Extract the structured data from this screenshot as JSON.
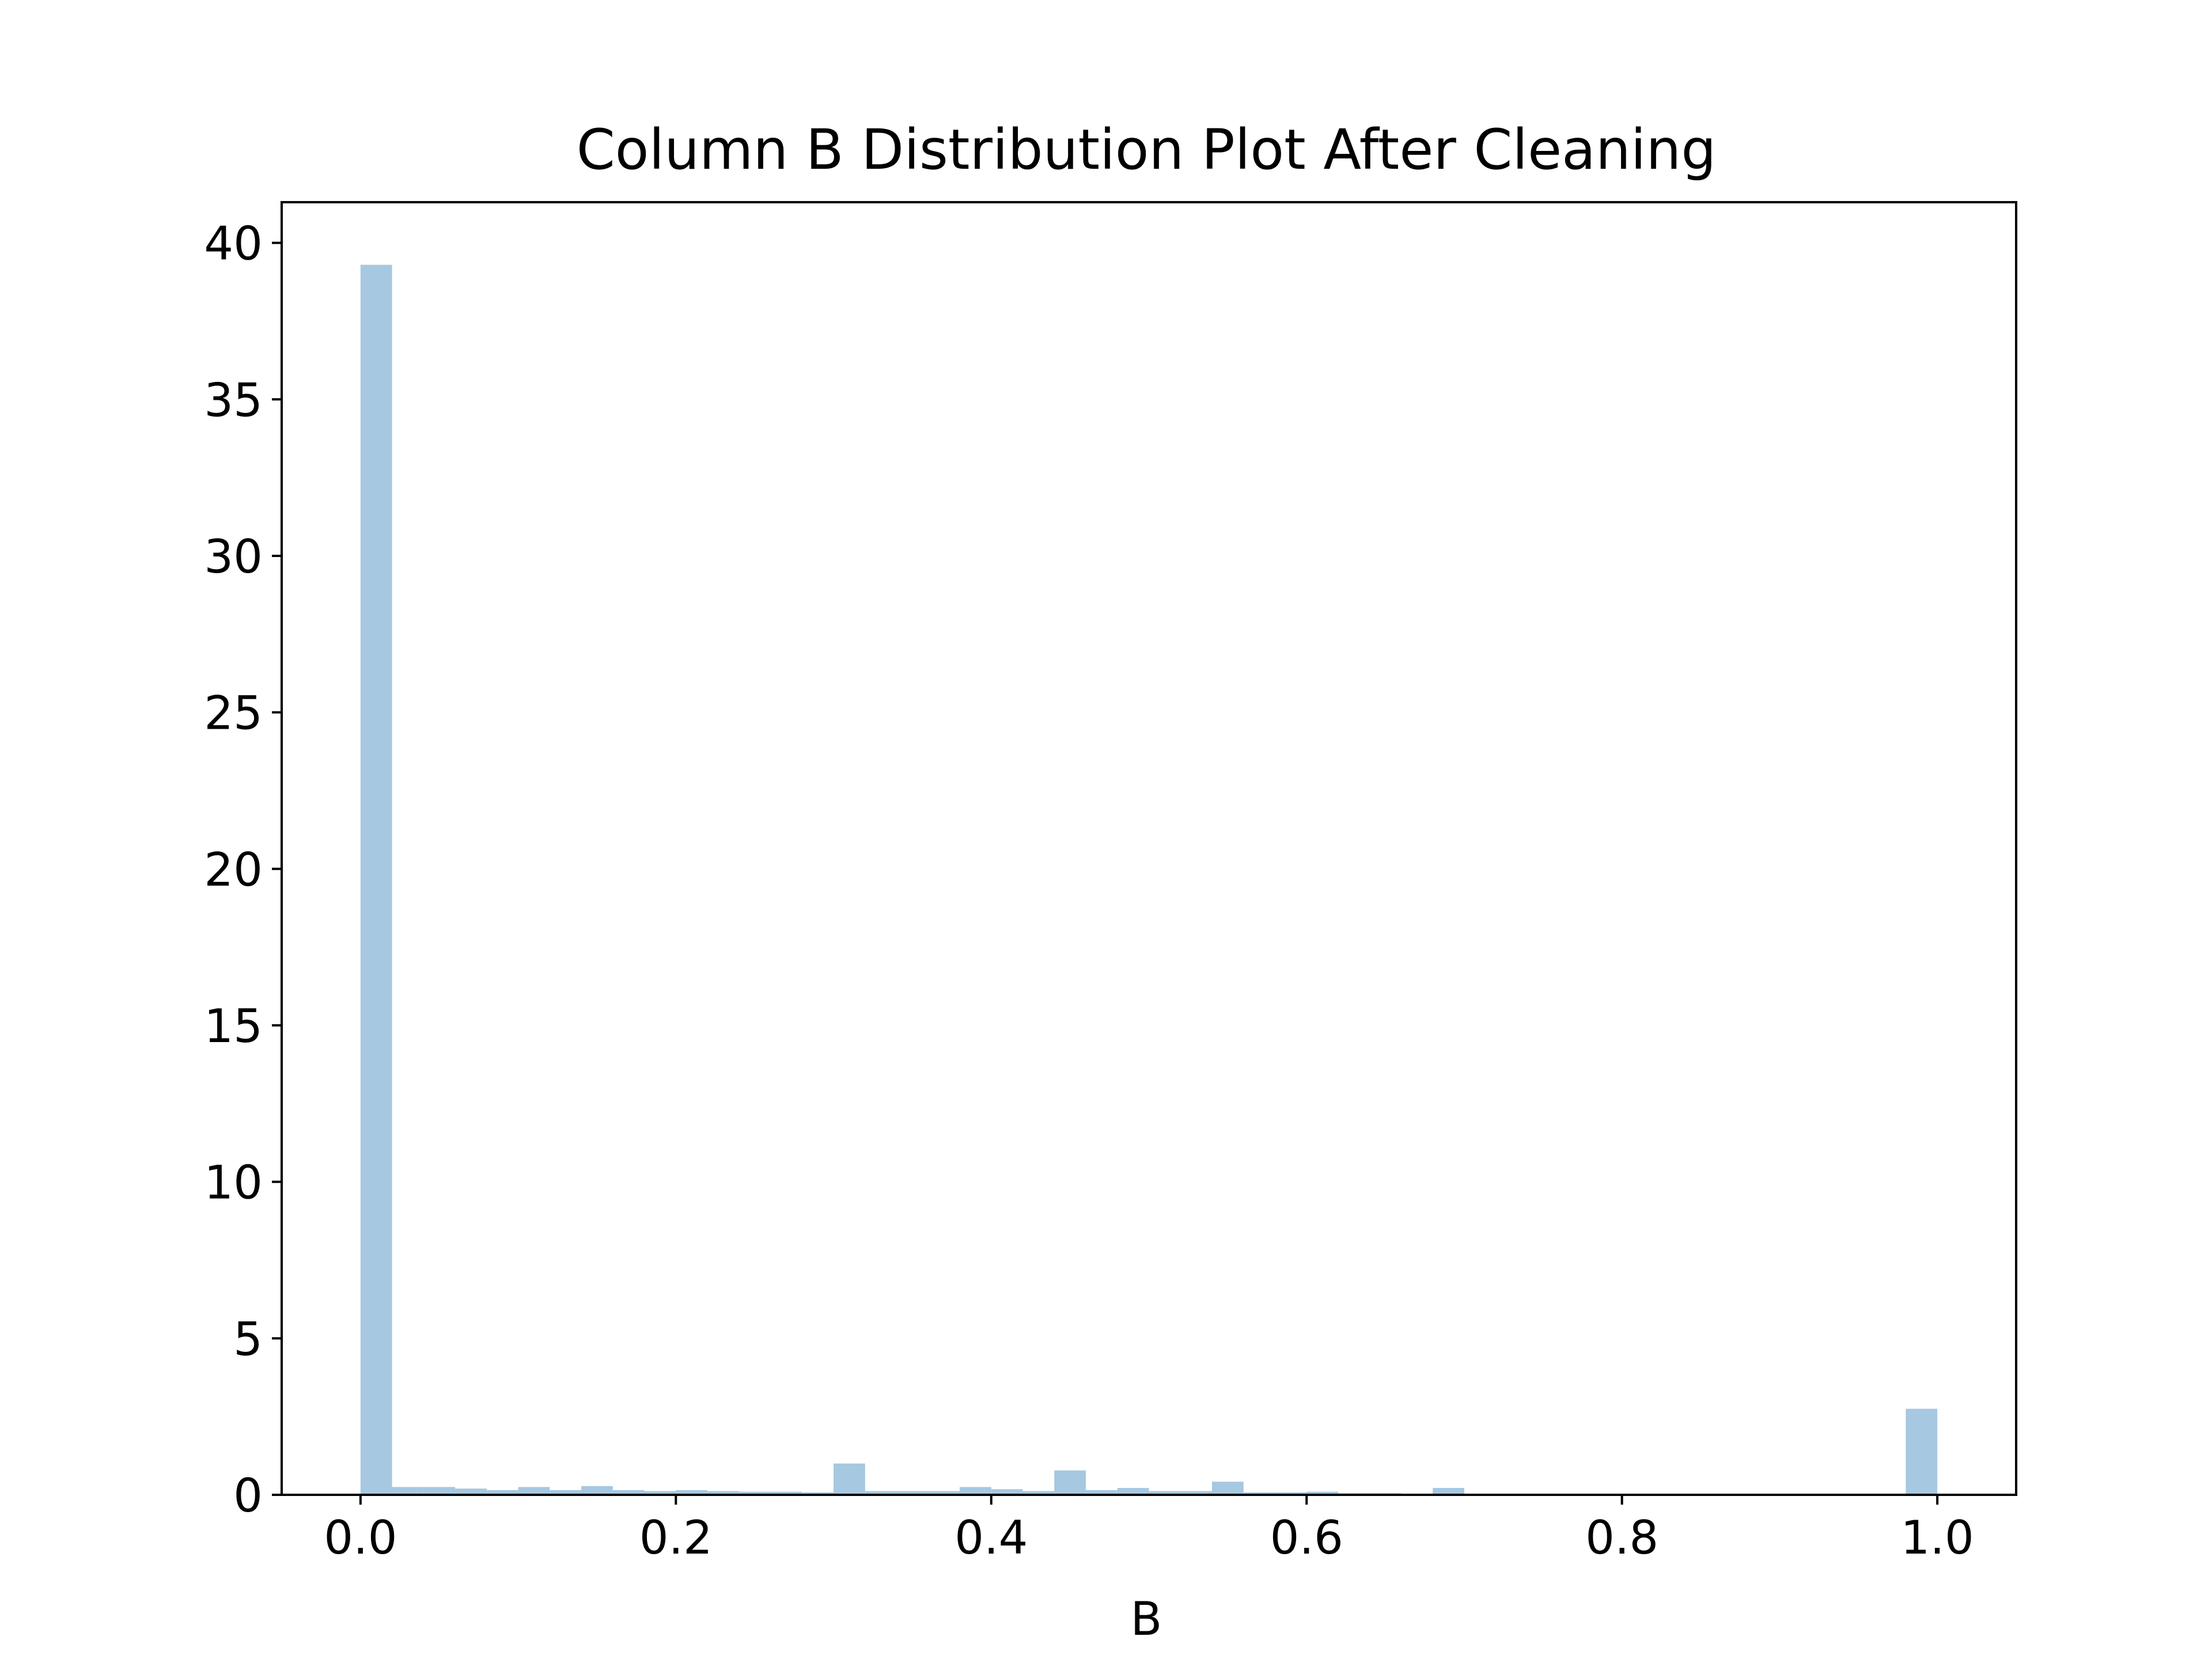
{
  "chart_data": {
    "type": "bar",
    "title": "Column B Distribution Plot After Cleaning",
    "xlabel": "B",
    "ylabel": "",
    "xlim": [
      -0.05,
      1.05
    ],
    "ylim": [
      0,
      41.3
    ],
    "bar_color": "#a6c8e0",
    "grid": false,
    "legend": "none",
    "xticks": [
      {
        "value": 0.0,
        "label": "0.0"
      },
      {
        "value": 0.2,
        "label": "0.2"
      },
      {
        "value": 0.4,
        "label": "0.4"
      },
      {
        "value": 0.6,
        "label": "0.6"
      },
      {
        "value": 0.8,
        "label": "0.8"
      },
      {
        "value": 1.0,
        "label": "1.0"
      }
    ],
    "yticks": [
      {
        "value": 0,
        "label": "0"
      },
      {
        "value": 5,
        "label": "5"
      },
      {
        "value": 10,
        "label": "10"
      },
      {
        "value": 15,
        "label": "15"
      },
      {
        "value": 20,
        "label": "20"
      },
      {
        "value": 25,
        "label": "25"
      },
      {
        "value": 30,
        "label": "30"
      },
      {
        "value": 35,
        "label": "35"
      },
      {
        "value": 40,
        "label": "40"
      }
    ],
    "bin_width": 0.02,
    "bins": [
      {
        "start": 0.0,
        "value": 39.3
      },
      {
        "start": 0.02,
        "value": 0.25
      },
      {
        "start": 0.04,
        "value": 0.25
      },
      {
        "start": 0.06,
        "value": 0.2
      },
      {
        "start": 0.08,
        "value": 0.15
      },
      {
        "start": 0.1,
        "value": 0.25
      },
      {
        "start": 0.12,
        "value": 0.15
      },
      {
        "start": 0.14,
        "value": 0.28
      },
      {
        "start": 0.16,
        "value": 0.15
      },
      {
        "start": 0.18,
        "value": 0.12
      },
      {
        "start": 0.2,
        "value": 0.15
      },
      {
        "start": 0.22,
        "value": 0.12
      },
      {
        "start": 0.24,
        "value": 0.1
      },
      {
        "start": 0.26,
        "value": 0.1
      },
      {
        "start": 0.28,
        "value": 0.08
      },
      {
        "start": 0.3,
        "value": 1.0
      },
      {
        "start": 0.32,
        "value": 0.12
      },
      {
        "start": 0.34,
        "value": 0.12
      },
      {
        "start": 0.36,
        "value": 0.12
      },
      {
        "start": 0.38,
        "value": 0.25
      },
      {
        "start": 0.4,
        "value": 0.18
      },
      {
        "start": 0.42,
        "value": 0.12
      },
      {
        "start": 0.44,
        "value": 0.78
      },
      {
        "start": 0.46,
        "value": 0.15
      },
      {
        "start": 0.48,
        "value": 0.22
      },
      {
        "start": 0.5,
        "value": 0.12
      },
      {
        "start": 0.52,
        "value": 0.12
      },
      {
        "start": 0.54,
        "value": 0.42
      },
      {
        "start": 0.56,
        "value": 0.08
      },
      {
        "start": 0.58,
        "value": 0.08
      },
      {
        "start": 0.6,
        "value": 0.1
      },
      {
        "start": 0.62,
        "value": 0.05
      },
      {
        "start": 0.64,
        "value": 0.05
      },
      {
        "start": 0.66,
        "value": 0.03
      },
      {
        "start": 0.68,
        "value": 0.22
      },
      {
        "start": 0.98,
        "value": 2.75
      }
    ]
  }
}
